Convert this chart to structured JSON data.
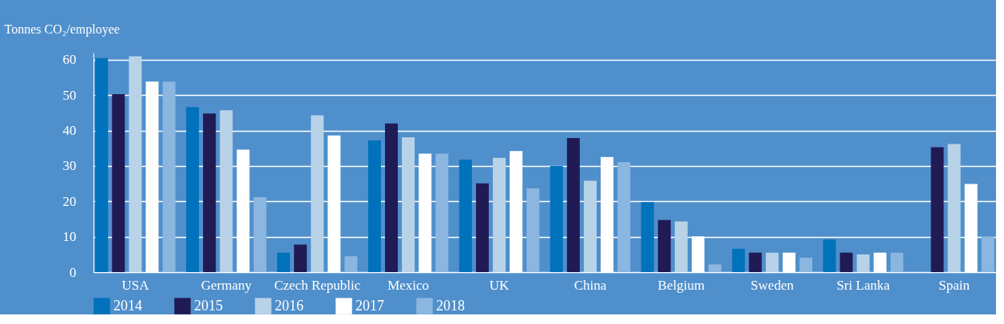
{
  "chart_data": {
    "type": "bar",
    "ylabel": "Tonnes CO₂/employee",
    "categories": [
      "USA",
      "Germany",
      "Czech Republic",
      "Mexico",
      "UK",
      "China",
      "Belgium",
      "Sweden",
      "Sri Lanka",
      "Spain"
    ],
    "series": [
      {
        "name": "2014",
        "color": "#0072bb",
        "values": [
          60.5,
          46.6,
          5.5,
          37.2,
          31.8,
          30.0,
          19.8,
          6.6,
          9.2,
          null
        ]
      },
      {
        "name": "2015",
        "color": "#201a55",
        "values": [
          50.3,
          44.8,
          7.8,
          42.0,
          25.1,
          37.9,
          14.7,
          5.5,
          5.5,
          35.3
        ]
      },
      {
        "name": "2016",
        "color": "#b8d3e8",
        "values": [
          61.0,
          45.7,
          44.3,
          38.1,
          32.3,
          25.8,
          14.3,
          5.5,
          5.0,
          36.2
        ]
      },
      {
        "name": "2017",
        "color": "#ffffff",
        "values": [
          53.8,
          34.6,
          38.6,
          33.5,
          34.2,
          32.5,
          10.1,
          5.5,
          5.5,
          24.9
        ]
      },
      {
        "name": "2018",
        "color": "#8ab6e0",
        "values": [
          53.8,
          21.2,
          4.5,
          33.5,
          23.7,
          31.1,
          2.2,
          4.1,
          5.5,
          10.0
        ]
      }
    ],
    "ylim": [
      0,
      62
    ],
    "yticks": [
      0,
      10,
      20,
      30,
      40,
      50,
      60
    ],
    "grid": "y",
    "legend": "bottom"
  }
}
